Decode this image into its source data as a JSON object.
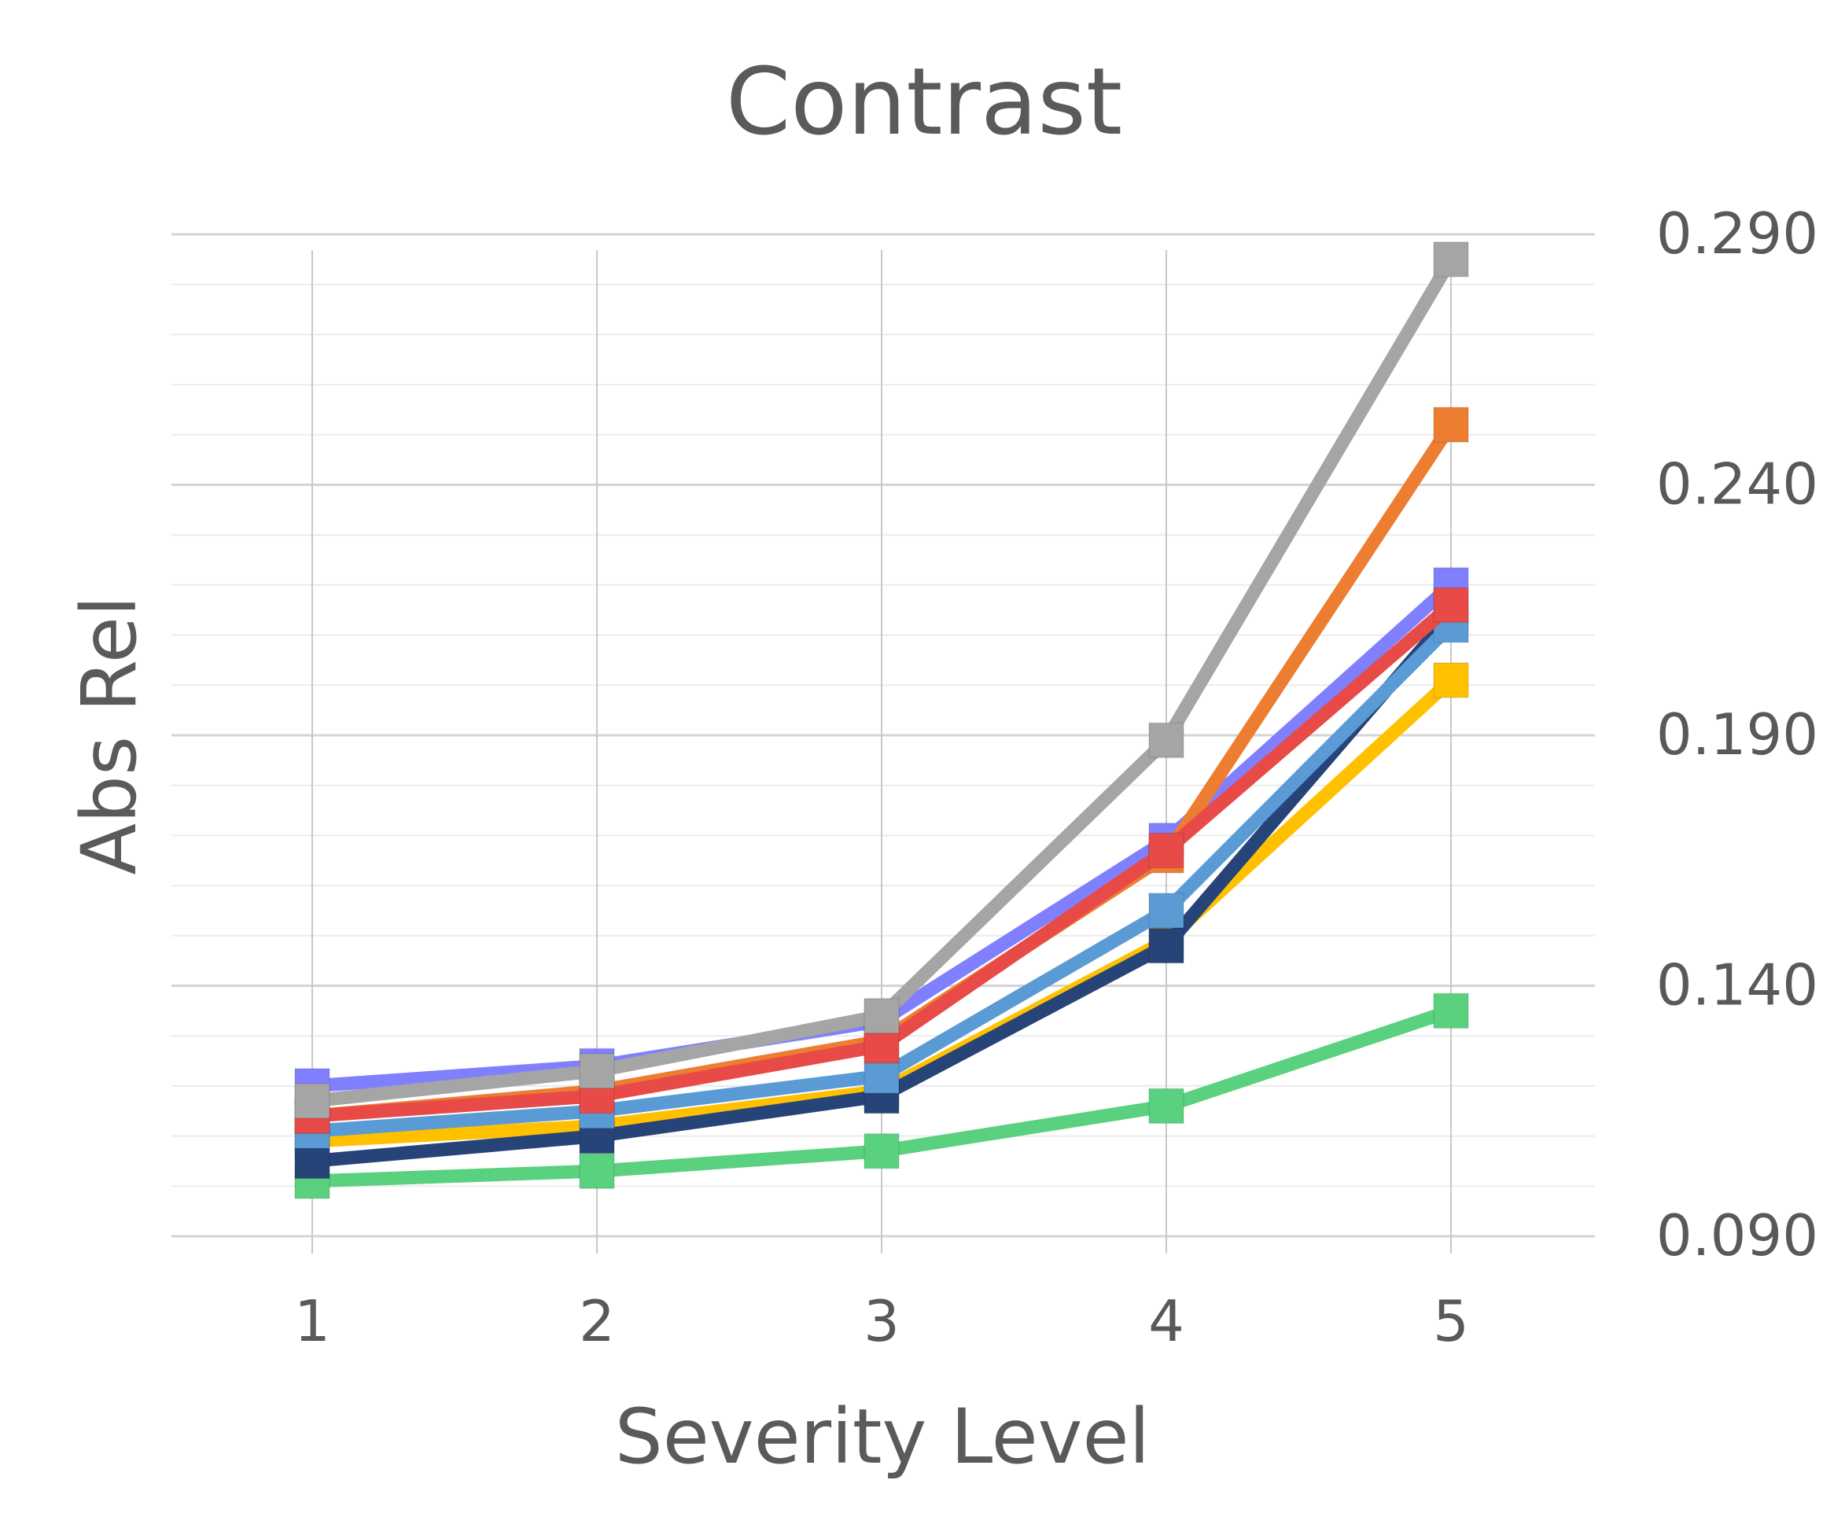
{
  "chart_data": {
    "type": "line",
    "title": "Contrast",
    "xlabel": "Severity Level",
    "ylabel": "Abs Rel",
    "categories": [
      "1",
      "2",
      "3",
      "4",
      "5"
    ],
    "y_axis_side": "right",
    "ylim": [
      0.09,
      0.29
    ],
    "yticks": [
      "0.090",
      "0.140",
      "0.190",
      "0.240",
      "0.290"
    ],
    "grid": true,
    "legend": "none",
    "series": [
      {
        "color": "#5ad17e",
        "values": [
          0.101,
          0.103,
          0.107,
          0.116,
          0.135
        ]
      },
      {
        "color": "#ffc000",
        "values": [
          0.109,
          0.112,
          0.119,
          0.149,
          0.201
        ]
      },
      {
        "color": "#264478",
        "values": [
          0.105,
          0.11,
          0.118,
          0.148,
          0.214
        ]
      },
      {
        "color": "#5b9bd5",
        "values": [
          0.111,
          0.115,
          0.122,
          0.155,
          0.212
        ]
      },
      {
        "color": "#8080ff",
        "values": [
          0.12,
          0.124,
          0.133,
          0.169,
          0.22
        ]
      },
      {
        "color": "#ed7d31",
        "values": [
          0.114,
          0.119,
          0.129,
          0.166,
          0.252
        ]
      },
      {
        "color": "#e84a47",
        "values": [
          0.114,
          0.118,
          0.128,
          0.167,
          0.216
        ]
      },
      {
        "color": "#a5a5a5",
        "values": [
          0.117,
          0.123,
          0.134,
          0.189,
          0.285
        ]
      }
    ]
  }
}
